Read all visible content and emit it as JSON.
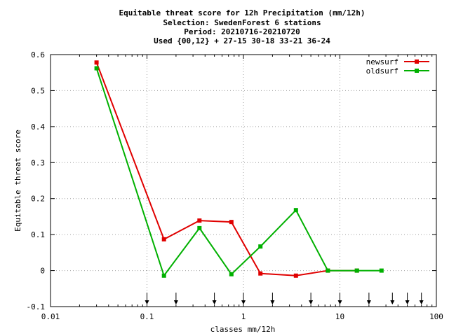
{
  "title_lines": [
    "Equitable threat score  for 12h Precipitation (mm/12h)",
    "Selection: SwedenForest      6 stations",
    "Period: 20210716-20210720",
    "Used {00,12} + 27-15 30-18 33-21 36-24"
  ],
  "chart_data": {
    "type": "line",
    "title": "Equitable threat score  for 12h Precipitation (mm/12h)",
    "xlabel": "classes mm/12h",
    "ylabel": "Equitable threat score",
    "xscale": "log",
    "xlim": [
      0.01,
      100
    ],
    "ylim": [
      -0.1,
      0.6
    ],
    "x_ticks": [
      0.01,
      0.1,
      1,
      10,
      100
    ],
    "x_tick_labels": [
      "0.01",
      "0.1",
      "1",
      "10",
      "100"
    ],
    "y_ticks": [
      -0.1,
      0,
      0.1,
      0.2,
      0.3,
      0.4,
      0.5,
      0.6
    ],
    "y_tick_labels": [
      "-0.1",
      "0",
      "0.1",
      "0.2",
      "0.3",
      "0.4",
      "0.5",
      "0.6"
    ],
    "grid": true,
    "legend_position": "top-right",
    "series": [
      {
        "name": "newsurf",
        "color": "#e00000",
        "x": [
          0.03,
          0.15,
          0.35,
          0.75,
          1.5,
          3.5,
          7.5,
          15
        ],
        "y": [
          0.578,
          0.087,
          0.139,
          0.135,
          -0.008,
          -0.014,
          0.0,
          0.0
        ]
      },
      {
        "name": "oldsurf",
        "color": "#00b000",
        "x": [
          0.03,
          0.15,
          0.35,
          0.75,
          1.5,
          3.5,
          7.5,
          15,
          27
        ],
        "y": [
          0.562,
          -0.014,
          0.118,
          -0.01,
          0.067,
          0.168,
          0.0,
          0.0,
          0.0
        ]
      }
    ],
    "threshold_arrows": [
      0.1,
      0.2,
      0.5,
      1,
      2,
      5,
      10,
      20,
      35,
      50,
      70
    ]
  }
}
